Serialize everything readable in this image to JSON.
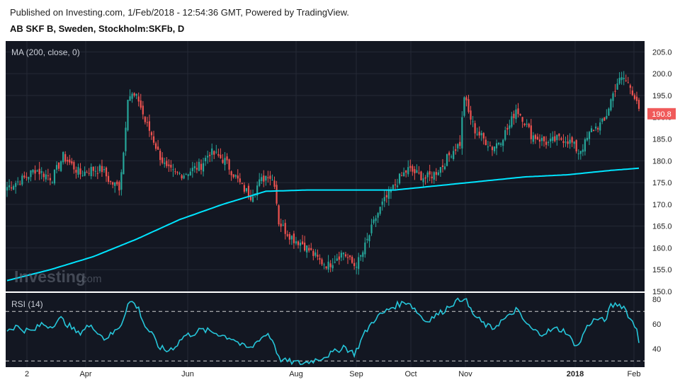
{
  "header": {
    "published": "Published on Investing.com, 1/Feb/2018 - 12:54:36 GMT, Powered by TradingView.",
    "symbol": "AB SKF B, Sweden, Stockholm:SKFb, D"
  },
  "watermark": {
    "brand": "Investing",
    "suffix": ".com"
  },
  "colors": {
    "background": "#131722",
    "up": "#26a69a",
    "down": "#ef5350",
    "ma": "#00e5ff",
    "rsi": "#26c6da",
    "price_label_bg": "#f05a5a"
  },
  "chart_data": [
    {
      "type": "candlestick",
      "legend": "MA (200, close, 0)",
      "ylim": [
        150,
        207.5
      ],
      "y_ticks": [
        "205.0",
        "200.0",
        "195.0",
        "190.0",
        "185.0",
        "180.0",
        "175.0",
        "170.0",
        "165.0",
        "160.0",
        "155.0",
        "150.0"
      ],
      "last_price_label": "190.8",
      "x_ticks": [
        "2",
        "Apr",
        "Jun",
        "Aug",
        "Sep",
        "Oct",
        "Nov",
        "2018",
        "Feb"
      ],
      "price_anchors": [
        [
          0,
          174
        ],
        [
          4,
          175
        ],
        [
          8,
          176
        ],
        [
          13,
          178
        ],
        [
          17,
          177
        ],
        [
          21,
          176
        ],
        [
          26,
          181
        ],
        [
          30,
          179
        ],
        [
          34,
          177
        ],
        [
          39,
          178
        ],
        [
          44,
          178
        ],
        [
          48,
          175
        ],
        [
          52,
          174
        ],
        [
          54,
          182
        ],
        [
          56,
          195
        ],
        [
          58,
          195
        ],
        [
          61,
          194
        ],
        [
          64,
          189
        ],
        [
          67,
          186
        ],
        [
          70,
          182
        ],
        [
          74,
          178
        ],
        [
          78,
          177
        ],
        [
          82,
          177
        ],
        [
          86,
          178
        ],
        [
          90,
          179
        ],
        [
          94,
          182
        ],
        [
          98,
          181
        ],
        [
          101,
          180
        ],
        [
          105,
          177
        ],
        [
          109,
          174
        ],
        [
          113,
          172
        ],
        [
          117,
          175
        ],
        [
          121,
          177
        ],
        [
          124,
          175
        ],
        [
          126,
          166
        ],
        [
          129,
          164
        ],
        [
          133,
          162
        ],
        [
          137,
          161
        ],
        [
          141,
          159
        ],
        [
          145,
          157
        ],
        [
          149,
          156
        ],
        [
          153,
          158
        ],
        [
          156,
          159
        ],
        [
          159,
          157
        ],
        [
          161,
          156
        ],
        [
          163,
          157
        ],
        [
          165,
          159
        ],
        [
          168,
          163
        ],
        [
          171,
          167
        ],
        [
          174,
          170
        ],
        [
          178,
          173
        ],
        [
          182,
          176
        ],
        [
          186,
          178
        ],
        [
          190,
          177
        ],
        [
          194,
          176
        ],
        [
          198,
          177
        ],
        [
          202,
          179
        ],
        [
          206,
          182
        ],
        [
          210,
          184
        ],
        [
          212,
          195
        ],
        [
          214,
          191
        ],
        [
          217,
          187
        ],
        [
          221,
          185
        ],
        [
          225,
          183
        ],
        [
          229,
          185
        ],
        [
          233,
          188
        ],
        [
          236,
          192
        ],
        [
          239,
          190
        ],
        [
          243,
          186
        ],
        [
          247,
          185
        ],
        [
          251,
          184
        ],
        [
          255,
          185
        ],
        [
          259,
          185
        ],
        [
          262,
          184
        ],
        [
          265,
          182
        ],
        [
          268,
          184
        ],
        [
          271,
          187
        ],
        [
          274,
          188
        ],
        [
          277,
          189
        ],
        [
          280,
          194
        ],
        [
          283,
          198
        ],
        [
          286,
          199
        ],
        [
          289,
          197
        ],
        [
          292,
          194
        ],
        [
          293,
          191
        ]
      ],
      "ma_anchors": [
        [
          0,
          152.5
        ],
        [
          20,
          155
        ],
        [
          40,
          158
        ],
        [
          60,
          162
        ],
        [
          80,
          166.5
        ],
        [
          100,
          170
        ],
        [
          120,
          173
        ],
        [
          140,
          173.3
        ],
        [
          160,
          173.3
        ],
        [
          180,
          173.3
        ],
        [
          200,
          174.3
        ],
        [
          220,
          175.3
        ],
        [
          240,
          176.3
        ],
        [
          260,
          176.8
        ],
        [
          280,
          177.8
        ],
        [
          293,
          178.3
        ]
      ]
    },
    {
      "type": "line",
      "legend": "RSI (14)",
      "ylim": [
        25,
        85
      ],
      "y_ticks": [
        "80",
        "60",
        "40"
      ],
      "bands": [
        70,
        30
      ],
      "rsi_anchors": [
        [
          0,
          55
        ],
        [
          4,
          58
        ],
        [
          8,
          55
        ],
        [
          12,
          54
        ],
        [
          16,
          60
        ],
        [
          20,
          58
        ],
        [
          25,
          64
        ],
        [
          29,
          58
        ],
        [
          33,
          52
        ],
        [
          37,
          58
        ],
        [
          41,
          56
        ],
        [
          45,
          48
        ],
        [
          49,
          52
        ],
        [
          53,
          60
        ],
        [
          56,
          76
        ],
        [
          58,
          78
        ],
        [
          61,
          72
        ],
        [
          64,
          58
        ],
        [
          67,
          52
        ],
        [
          70,
          42
        ],
        [
          74,
          38
        ],
        [
          78,
          42
        ],
        [
          82,
          50
        ],
        [
          86,
          52
        ],
        [
          90,
          55
        ],
        [
          94,
          54
        ],
        [
          98,
          52
        ],
        [
          101,
          50
        ],
        [
          105,
          48
        ],
        [
          109,
          42
        ],
        [
          113,
          40
        ],
        [
          117,
          48
        ],
        [
          121,
          52
        ],
        [
          124,
          44
        ],
        [
          126,
          32
        ],
        [
          129,
          30
        ],
        [
          133,
          29
        ],
        [
          137,
          28
        ],
        [
          141,
          30
        ],
        [
          145,
          32
        ],
        [
          149,
          35
        ],
        [
          153,
          38
        ],
        [
          156,
          42
        ],
        [
          159,
          38
        ],
        [
          161,
          36
        ],
        [
          163,
          42
        ],
        [
          165,
          50
        ],
        [
          168,
          58
        ],
        [
          171,
          65
        ],
        [
          174,
          68
        ],
        [
          178,
          73
        ],
        [
          182,
          76
        ],
        [
          186,
          78
        ],
        [
          190,
          70
        ],
        [
          194,
          62
        ],
        [
          198,
          66
        ],
        [
          202,
          70
        ],
        [
          206,
          76
        ],
        [
          210,
          79
        ],
        [
          212,
          82
        ],
        [
          214,
          74
        ],
        [
          217,
          66
        ],
        [
          221,
          60
        ],
        [
          225,
          56
        ],
        [
          229,
          62
        ],
        [
          233,
          66
        ],
        [
          236,
          72
        ],
        [
          239,
          64
        ],
        [
          243,
          56
        ],
        [
          247,
          52
        ],
        [
          251,
          54
        ],
        [
          255,
          56
        ],
        [
          259,
          54
        ],
        [
          262,
          46
        ],
        [
          265,
          42
        ],
        [
          268,
          55
        ],
        [
          271,
          62
        ],
        [
          274,
          64
        ],
        [
          277,
          62
        ],
        [
          280,
          74
        ],
        [
          283,
          76
        ],
        [
          286,
          74
        ],
        [
          289,
          64
        ],
        [
          292,
          56
        ],
        [
          293,
          46
        ]
      ]
    }
  ]
}
